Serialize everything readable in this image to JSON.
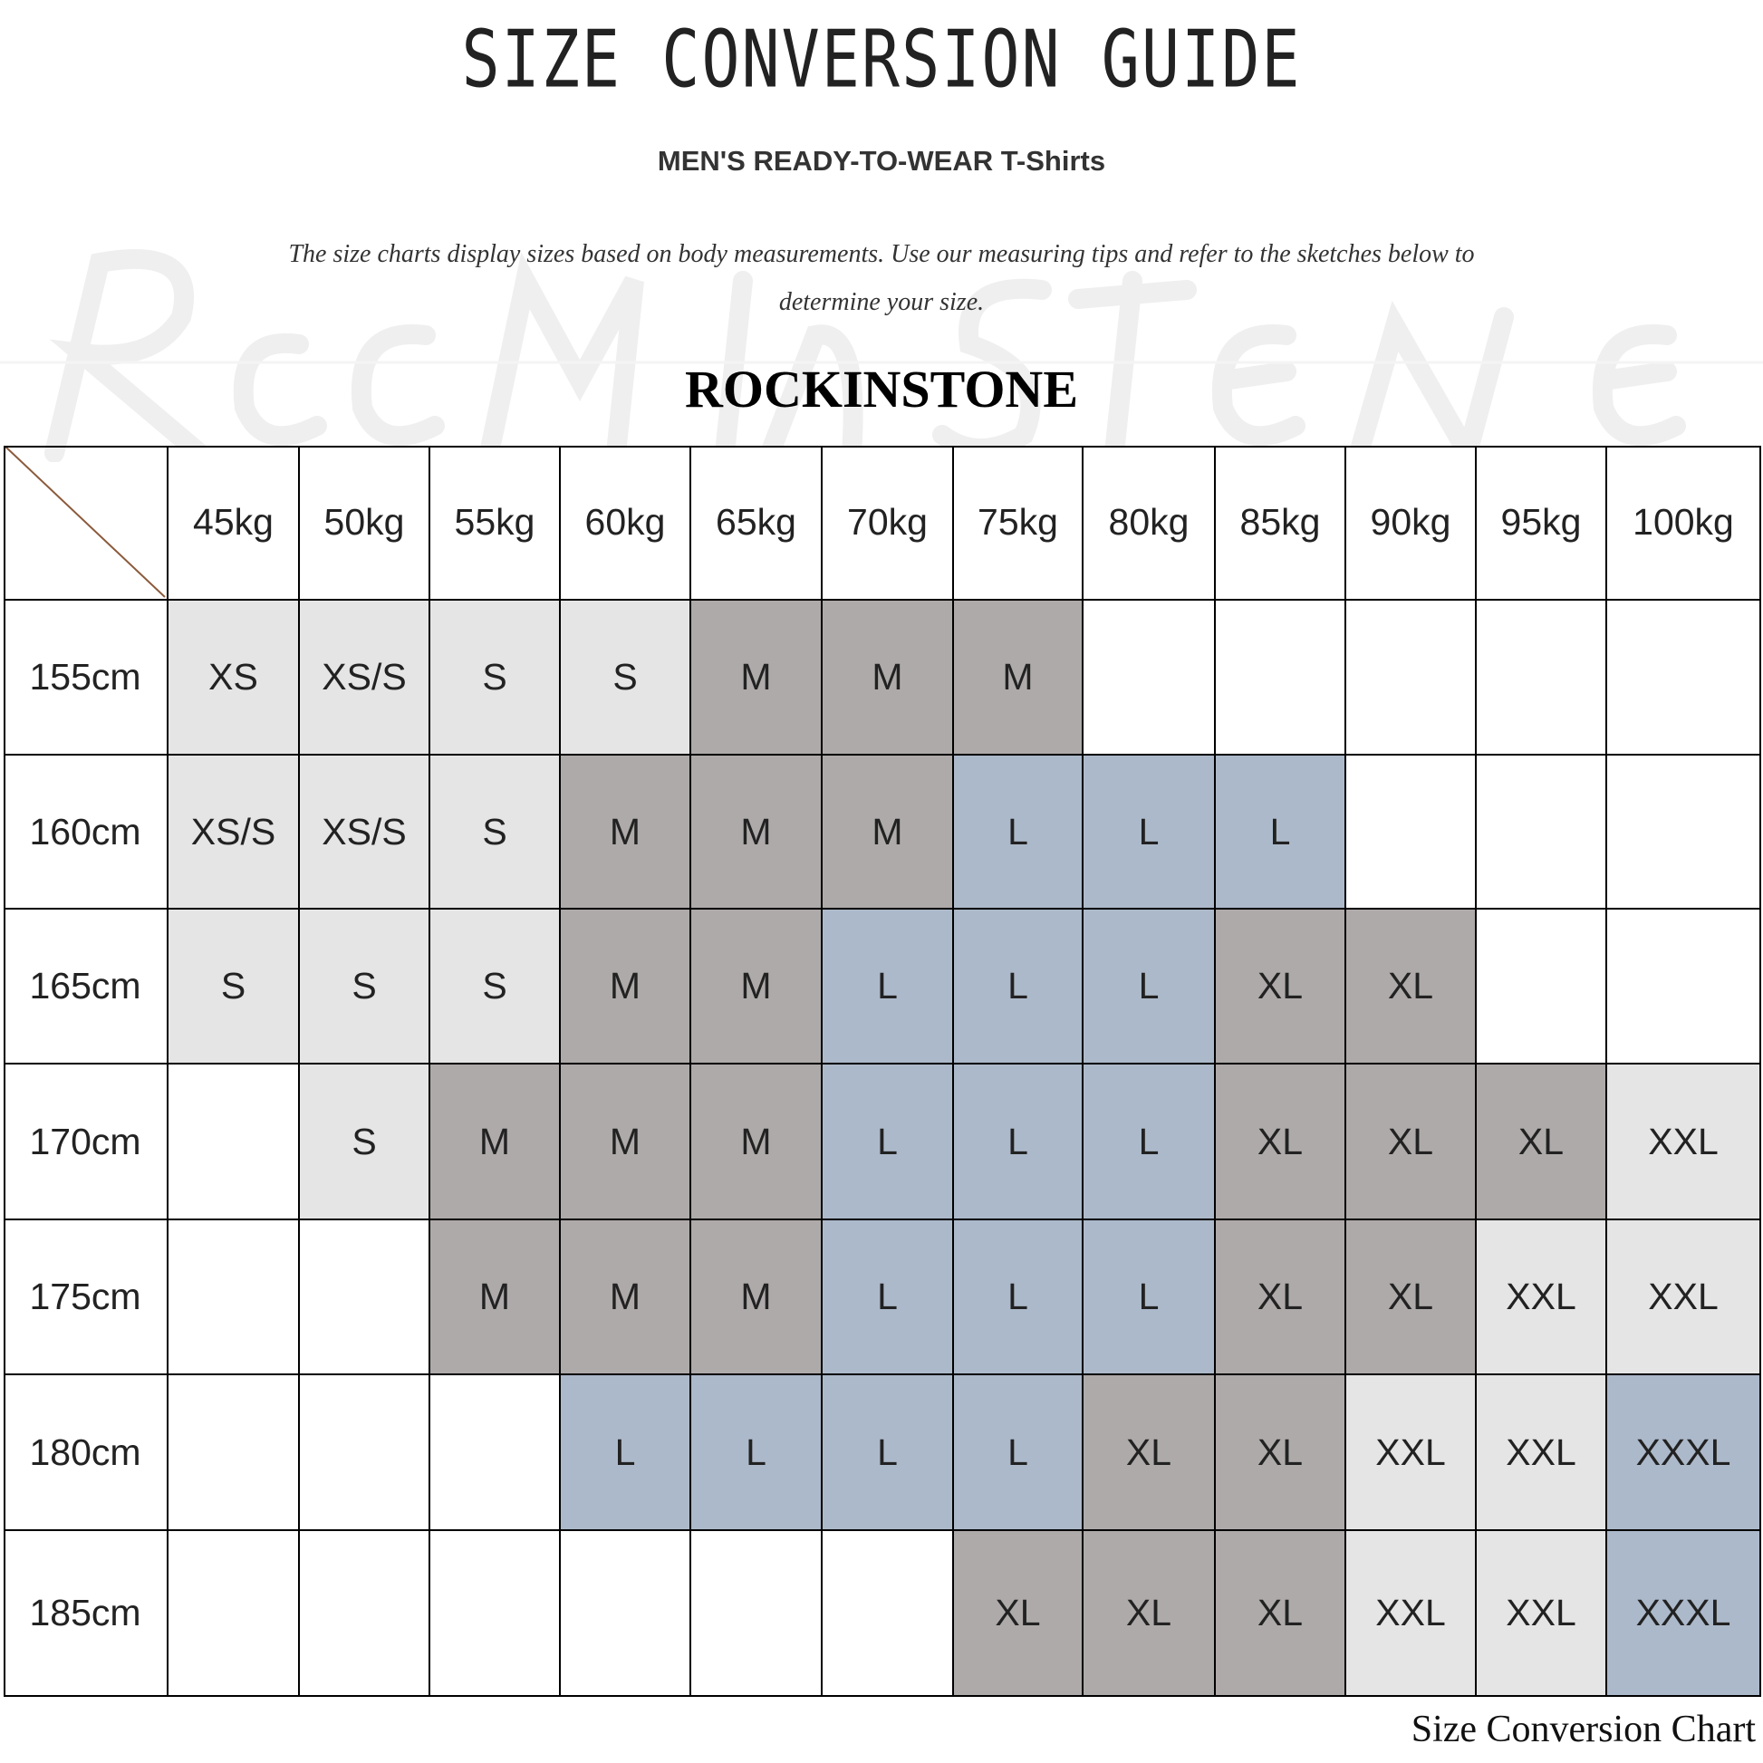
{
  "header": {
    "title": "SIZE CONVERSION GUIDE",
    "subtitle": "MEN'S READY-TO-WEAR T-Shirts",
    "intro": "The size charts display sizes based on body measurements. Use our measuring tips and refer to the sketches below to determine your size.",
    "brand": "ROCKINSTONE",
    "watermark": "Rock in stone"
  },
  "table": {
    "weights": [
      "45kg",
      "50kg",
      "55kg",
      "60kg",
      "65kg",
      "70kg",
      "75kg",
      "80kg",
      "85kg",
      "90kg",
      "95kg",
      "100kg"
    ],
    "heights": [
      "155cm",
      "160cm",
      "165cm",
      "170cm",
      "175cm",
      "180cm",
      "185cm"
    ],
    "sizes": [
      [
        "XS",
        "XS/S",
        "S",
        "S",
        "M",
        "M",
        "M",
        "",
        "",
        "",
        "",
        ""
      ],
      [
        "XS/S",
        "XS/S",
        "S",
        "M",
        "M",
        "M",
        "L",
        "L",
        "L",
        "",
        "",
        ""
      ],
      [
        "S",
        "S",
        "S",
        "M",
        "M",
        "L",
        "L",
        "L",
        "XL",
        "XL",
        "",
        ""
      ],
      [
        "",
        "S",
        "M",
        "M",
        "M",
        "L",
        "L",
        "L",
        "XL",
        "XL",
        "XL",
        "XXL"
      ],
      [
        "",
        "",
        "M",
        "M",
        "M",
        "L",
        "L",
        "L",
        "XL",
        "XL",
        "XXL",
        "XXL"
      ],
      [
        "",
        "",
        "",
        "L",
        "L",
        "L",
        "L",
        "XL",
        "XL",
        "XXL",
        "XXL",
        "XXXL"
      ],
      [
        "",
        "",
        "",
        "",
        "",
        "",
        "XL",
        "XL",
        "XL",
        "XXL",
        "XXL",
        "XXXL"
      ]
    ],
    "size_colors": {
      "XS": "#e5e5e5",
      "XS/S": "#e5e5e5",
      "S": "#e5e5e5",
      "M": "#aeaaa9",
      "L": "#acb9ca",
      "XL": "#aeaaa9",
      "XXL": "#e5e5e5",
      "XXXL": "#acb9ca"
    },
    "corner_line_color": "#8b5a3c"
  },
  "footer": {
    "caption": "Size Conversion Chart"
  }
}
